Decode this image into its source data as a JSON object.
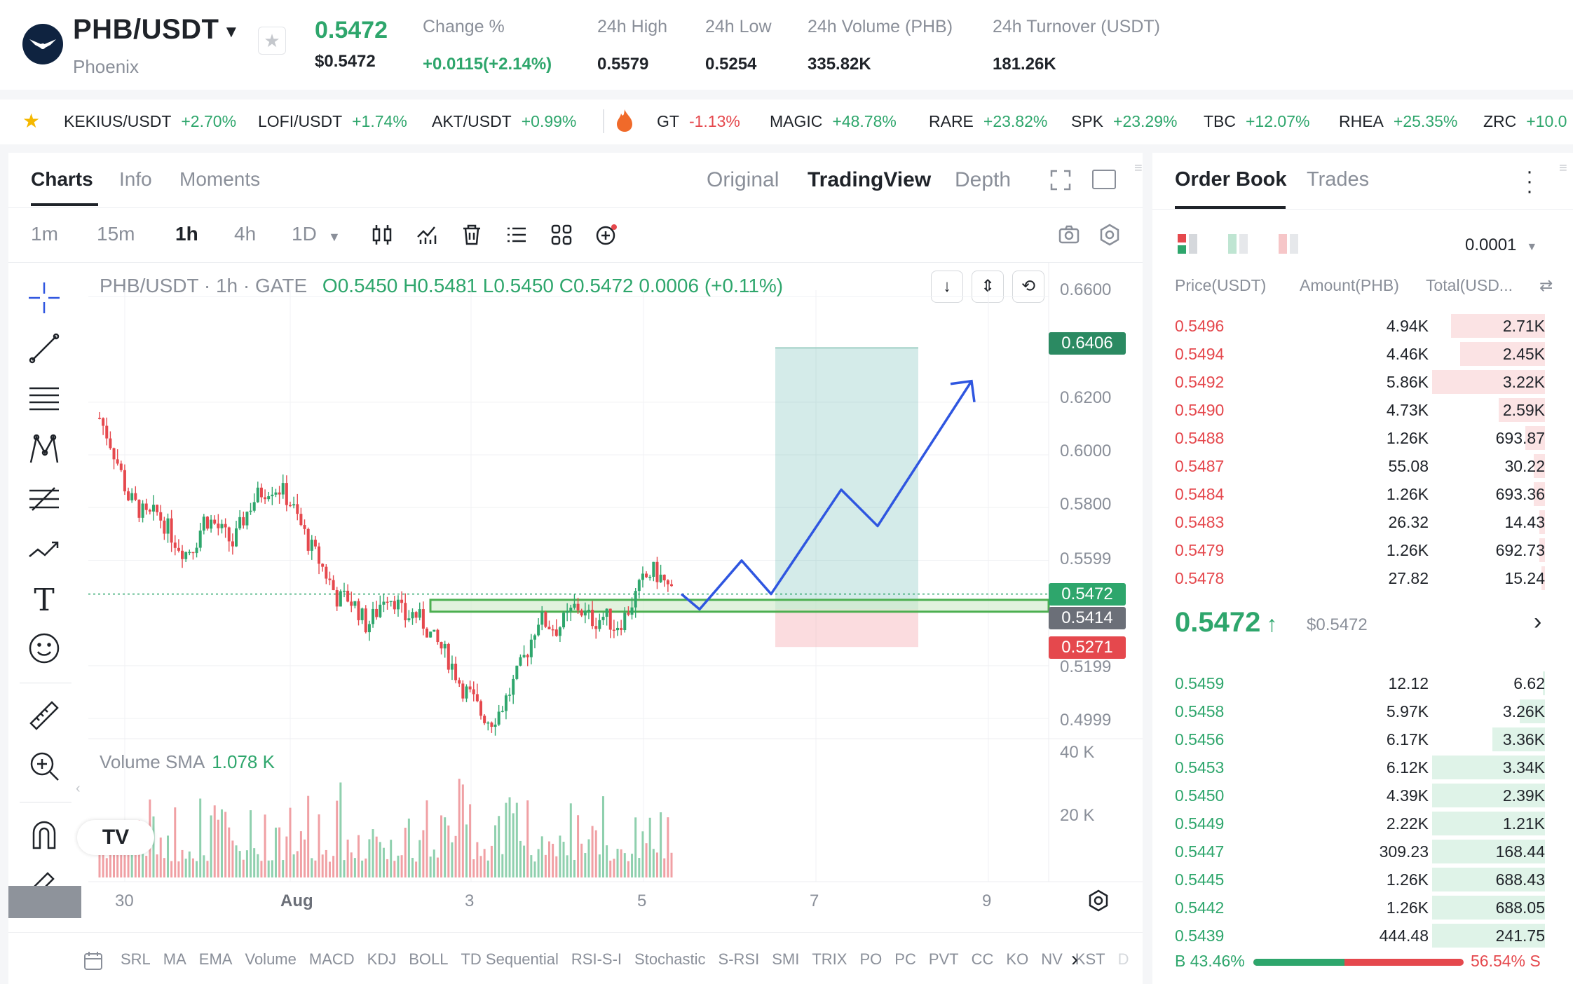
{
  "header": {
    "pair": "PHB/USDT",
    "name": "Phoenix",
    "last_price": "0.5472",
    "last_price_usd": "$0.5472",
    "stats": [
      {
        "label": "Change %",
        "value": "+0.0115(+2.14%)"
      },
      {
        "label": "24h High",
        "value": "0.5579"
      },
      {
        "label": "24h Low",
        "value": "0.5254"
      },
      {
        "label": "24h Volume (PHB)",
        "value": "335.82K"
      },
      {
        "label": "24h Turnover (USDT)",
        "value": "181.26K"
      }
    ]
  },
  "ticker": [
    {
      "symbol": "KEKIUS/USDT",
      "change": "+2.70%"
    },
    {
      "symbol": "LOFI/USDT",
      "change": "+1.74%"
    },
    {
      "symbol": "AKT/USDT",
      "change": "+0.99%"
    },
    {
      "symbol": "GT",
      "change": "-1.13%"
    },
    {
      "symbol": "MAGIC",
      "change": "+48.78%"
    },
    {
      "symbol": "RARE",
      "change": "+23.82%"
    },
    {
      "symbol": "SPK",
      "change": "+23.29%"
    },
    {
      "symbol": "TBC",
      "change": "+12.07%"
    },
    {
      "symbol": "RHEA",
      "change": "+25.35%"
    },
    {
      "symbol": "ZRC",
      "change": "+10.0"
    }
  ],
  "chart_panel": {
    "tabs": [
      "Charts",
      "Info",
      "Moments"
    ],
    "views": [
      "Original",
      "TradingView",
      "Depth"
    ],
    "timeframes": [
      "1m",
      "15m",
      "1h",
      "4h",
      "1D"
    ],
    "legend": {
      "title": "PHB/USDT · 1h · GATE",
      "ohlc": "O0.5450  H0.5481  L0.5450  C0.5472  0.0006 (+0.11%)"
    },
    "volume_legend": {
      "label": "Volume SMA",
      "value": "1.078 K"
    },
    "indicators": [
      "SRL",
      "MA",
      "EMA",
      "Volume",
      "MACD",
      "KDJ",
      "BOLL",
      "TD Sequential",
      "RSI-S-I",
      "Stochastic",
      "S-RSI",
      "SMI",
      "TRIX",
      "PO",
      "PC",
      "PVT",
      "CC",
      "KO",
      "NV",
      "KST",
      "D"
    ],
    "price_labels": {
      "target": "0.6406",
      "current": "0.5472",
      "zone": "0.5414",
      "stop": "0.5271"
    },
    "tv_logo": "TV"
  },
  "chart_data": {
    "type": "candlestick",
    "title": "PHB/USDT · 1h · GATE",
    "x_ticks": [
      "30",
      "Aug",
      "3",
      "5",
      "7",
      "9"
    ],
    "y_ticks": [
      "0.6600",
      "0.6200",
      "0.6000",
      "0.5800",
      "0.5599",
      "0.5199",
      "0.4999"
    ],
    "ylim": [
      0.49,
      0.67
    ],
    "volume_ticks": [
      "40 K",
      "20 K"
    ],
    "close_path": [
      0.614,
      0.606,
      0.596,
      0.584,
      0.58,
      0.576,
      0.578,
      0.573,
      0.567,
      0.563,
      0.566,
      0.576,
      0.574,
      0.57,
      0.566,
      0.575,
      0.582,
      0.586,
      0.588,
      0.587,
      0.582,
      0.574,
      0.566,
      0.56,
      0.553,
      0.545,
      0.546,
      0.542,
      0.535,
      0.54,
      0.548,
      0.545,
      0.538,
      0.54,
      0.536,
      0.53,
      0.526,
      0.52,
      0.512,
      0.508,
      0.502,
      0.499,
      0.503,
      0.51,
      0.518,
      0.527,
      0.538,
      0.536,
      0.534,
      0.538,
      0.543,
      0.539,
      0.537,
      0.539,
      0.535,
      0.538,
      0.545,
      0.552,
      0.556,
      0.553,
      0.5472
    ],
    "trade_setup": {
      "entry": 0.5414,
      "target": 0.6406,
      "stop": 0.5271,
      "zone_low": 0.5405,
      "zone_high": 0.545
    },
    "projection": [
      0.5414,
      0.5599,
      0.5472,
      0.5868,
      0.573,
      0.628
    ]
  },
  "order_book": {
    "tabs": [
      "Order Book",
      "Trades"
    ],
    "precision": "0.0001",
    "headers": [
      "Price(USDT)",
      "Amount(PHB)",
      "Total(USD..."
    ],
    "asks": [
      {
        "price": "0.5496",
        "amount": "4.94K",
        "total": "2.71K",
        "depth": 0.82
      },
      {
        "price": "0.5494",
        "amount": "4.46K",
        "total": "2.45K",
        "depth": 0.74
      },
      {
        "price": "0.5492",
        "amount": "5.86K",
        "total": "3.22K",
        "depth": 0.98
      },
      {
        "price": "0.5490",
        "amount": "4.73K",
        "total": "2.59K",
        "depth": 0.4
      },
      {
        "price": "0.5488",
        "amount": "1.26K",
        "total": "693.87",
        "depth": 0.17
      },
      {
        "price": "0.5487",
        "amount": "55.08",
        "total": "30.22",
        "depth": 0.1
      },
      {
        "price": "0.5484",
        "amount": "1.26K",
        "total": "693.36",
        "depth": 0.1
      },
      {
        "price": "0.5483",
        "amount": "26.32",
        "total": "14.43",
        "depth": 0.05
      },
      {
        "price": "0.5479",
        "amount": "1.26K",
        "total": "692.73",
        "depth": 0.05
      },
      {
        "price": "0.5478",
        "amount": "27.82",
        "total": "15.24",
        "depth": 0.03
      }
    ],
    "mid_price": "0.5472",
    "mid_arrow": "↑",
    "mid_usd": "$0.5472",
    "bids": [
      {
        "price": "0.5459",
        "amount": "12.12",
        "total": "6.62",
        "depth": 0.02
      },
      {
        "price": "0.5458",
        "amount": "5.97K",
        "total": "3.26K",
        "depth": 0.22
      },
      {
        "price": "0.5456",
        "amount": "6.17K",
        "total": "3.36K",
        "depth": 0.46
      },
      {
        "price": "0.5453",
        "amount": "6.12K",
        "total": "3.34K",
        "depth": 0.98
      },
      {
        "price": "0.5450",
        "amount": "4.39K",
        "total": "2.39K",
        "depth": 0.98
      },
      {
        "price": "0.5449",
        "amount": "2.22K",
        "total": "1.21K",
        "depth": 0.98
      },
      {
        "price": "0.5447",
        "amount": "309.23",
        "total": "168.44",
        "depth": 0.98
      },
      {
        "price": "0.5445",
        "amount": "1.26K",
        "total": "688.43",
        "depth": 0.98
      },
      {
        "price": "0.5442",
        "amount": "1.26K",
        "total": "688.05",
        "depth": 0.98
      },
      {
        "price": "0.5439",
        "amount": "444.48",
        "total": "241.75",
        "depth": 0.98
      }
    ],
    "buy_ratio": "B 43.46%",
    "sell_ratio": "56.54% S",
    "buy_fraction": 0.4346
  },
  "colors": {
    "up": "#2ea66c",
    "down": "#e5484d",
    "accent": "#2f56e0"
  }
}
